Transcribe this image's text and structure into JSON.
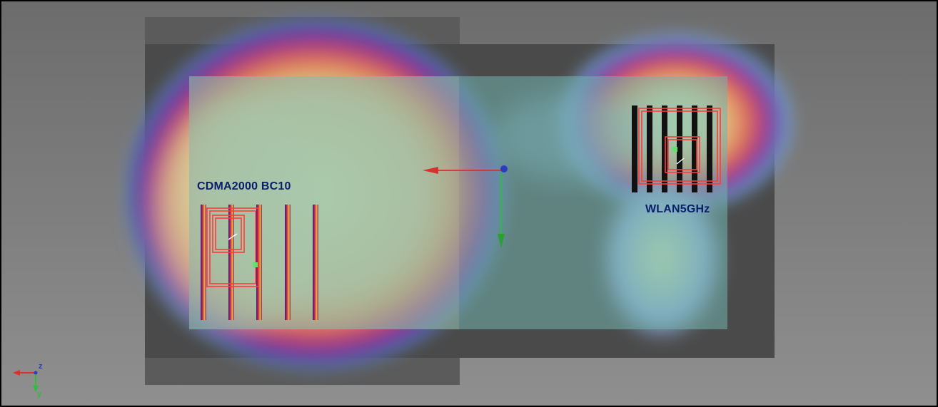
{
  "scene": {
    "label_color": "#0a1f6b",
    "antennas": [
      {
        "label": "CDMA2000 BC10"
      },
      {
        "label": "WLAN5GHz"
      }
    ],
    "axis_triad": {
      "z_label": "z",
      "y_label": "y"
    },
    "colors": {
      "background_top": "#6e6e6e",
      "background_bottom": "#8e8e8e",
      "board": "#6fa7a3",
      "antenna_trace": "#ff3b3b",
      "arrow_x": "#d93030",
      "arrow_y": "#2bbf3a",
      "origin": "#2a3dbf"
    }
  }
}
